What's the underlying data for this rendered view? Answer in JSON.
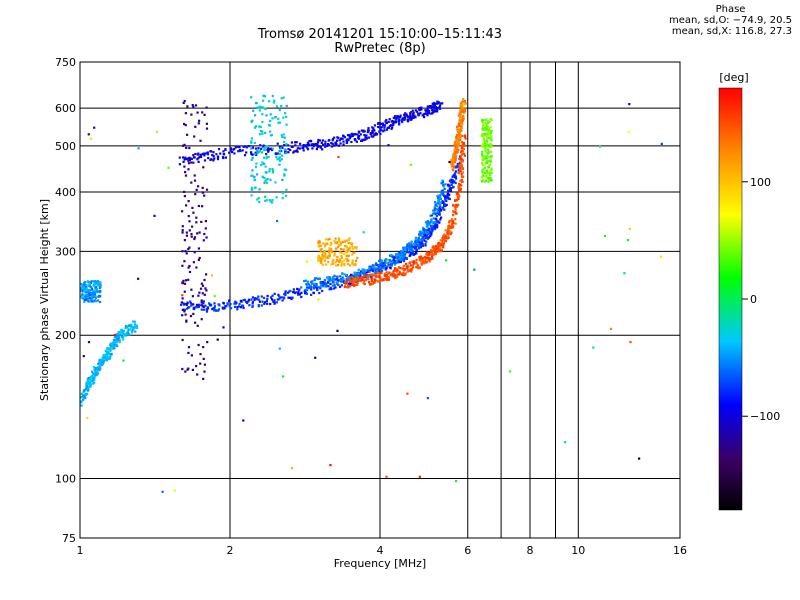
{
  "header": {
    "title": "Tromsø 20141201 15:10:00–15:11:43",
    "subtitle": "RwPretec (8p)"
  },
  "phase_info": {
    "heading": "Phase",
    "line_o": "mean, sd,O: −74.9, 20.5",
    "line_x": "mean, sd,X: 116.8, 27.3"
  },
  "colorbar": {
    "unit": "[deg]",
    "ticks": [
      {
        "value": 100,
        "label": "100"
      },
      {
        "value": 0,
        "label": "0"
      },
      {
        "value": -100,
        "label": "−100"
      }
    ],
    "range": [
      -180,
      180
    ],
    "colormap": "rainbow",
    "colors": [
      "#000000",
      "#3a0066",
      "#0000ff",
      "#00c8ff",
      "#00ff00",
      "#ffff00",
      "#ff8800",
      "#ff0000"
    ]
  },
  "chart_data": {
    "type": "scatter",
    "title": "Tromsø 20141201 15:10:00–15:11:43",
    "subtitle": "RwPretec (8p)",
    "xlabel": "Frequency [MHz]",
    "ylabel": "Stationary phase Virtual Height [km]",
    "x_scale": "log",
    "y_scale": "log",
    "xlim": [
      1,
      16
    ],
    "ylim": [
      75,
      750
    ],
    "xticks": [
      {
        "value": 1,
        "label": "1"
      },
      {
        "value": 2,
        "label": "2"
      },
      {
        "value": 4,
        "label": "4"
      },
      {
        "value": 6,
        "label": "6"
      },
      {
        "value": 8,
        "label": "8"
      },
      {
        "value": 10,
        "label": "10"
      },
      {
        "value": 16,
        "label": "16"
      }
    ],
    "xgrid_only": [
      7,
      9
    ],
    "yticks": [
      {
        "value": 75,
        "label": "75"
      },
      {
        "value": 100,
        "label": "100"
      },
      {
        "value": 200,
        "label": "200"
      },
      {
        "value": 300,
        "label": "300"
      },
      {
        "value": 400,
        "label": "400"
      },
      {
        "value": 500,
        "label": "500"
      },
      {
        "value": 600,
        "label": "600"
      },
      {
        "value": 750,
        "label": "750"
      }
    ],
    "grid": true,
    "color_by": "phase [deg]",
    "clusters": [
      {
        "desc": "O-trace F-layer",
        "phase": -80,
        "x": [
          1.6,
          1.9,
          2.3,
          2.8,
          3.3,
          3.7,
          4.1,
          4.5,
          4.9,
          5.2,
          5.5,
          5.8
        ],
        "y": [
          230,
          230,
          236,
          246,
          258,
          268,
          280,
          295,
          315,
          345,
          400,
          470
        ]
      },
      {
        "desc": "O-trace tail",
        "phase": -55,
        "x": [
          2.8,
          3.3,
          3.8,
          4.3,
          4.7,
          5.1,
          5.4
        ],
        "y": [
          255,
          262,
          272,
          290,
          310,
          350,
          420
        ]
      },
      {
        "desc": "X-trace F-layer",
        "phase": 150,
        "x": [
          3.4,
          3.8,
          4.2,
          4.6,
          5.0,
          5.3,
          5.6,
          5.8,
          5.9
        ],
        "y": [
          258,
          262,
          268,
          278,
          292,
          310,
          345,
          420,
          520
        ]
      },
      {
        "desc": "X-trace upper",
        "phase": 130,
        "x": [
          5.6,
          5.7,
          5.8,
          5.9
        ],
        "y": [
          450,
          500,
          560,
          620
        ]
      },
      {
        "desc": "Vertical band at 1.6-1.8 MHz",
        "phase": -125,
        "x": [
          1.6,
          1.8
        ],
        "y": [
          160,
          640
        ]
      },
      {
        "desc": "Upper echo 2nd hop",
        "phase": -95,
        "x": [
          1.6,
          2.0,
          2.6,
          3.1,
          3.6,
          4.0,
          4.4,
          4.9,
          5.3
        ],
        "y": [
          465,
          485,
          495,
          505,
          520,
          545,
          570,
          590,
          610
        ]
      },
      {
        "desc": "Low freq cluster",
        "phase": -40,
        "x": [
          1.0,
          1.05,
          1.1,
          1.15,
          1.2,
          1.3
        ],
        "y": [
          145,
          160,
          175,
          185,
          200,
          210
        ]
      },
      {
        "desc": "Low freq patch at 250 km",
        "phase": -50,
        "x": [
          1.0,
          1.1
        ],
        "y": [
          235,
          260
        ]
      },
      {
        "desc": "6.6 MHz cluster",
        "phase": 40,
        "x": [
          6.4,
          6.7
        ],
        "y": [
          420,
          570
        ]
      },
      {
        "desc": "Cyan patch near 2.3-2.6 MHz",
        "phase": -30,
        "x": [
          2.2,
          2.6
        ],
        "y": [
          380,
          640
        ]
      },
      {
        "desc": "Yellow dots near 3.0-3.5 MHz",
        "phase": 110,
        "x": [
          3.0,
          3.6
        ],
        "y": [
          280,
          320
        ]
      }
    ]
  }
}
